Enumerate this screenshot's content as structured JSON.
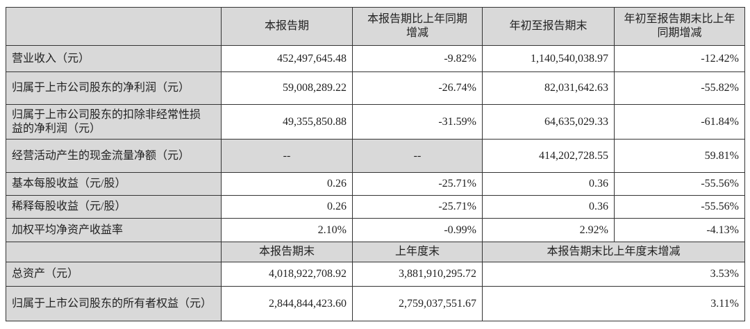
{
  "header": [
    "",
    "本报告期",
    "本报告期比上年同期增减",
    "年初至报告期末",
    "年初至报告期末比上年同期增减"
  ],
  "rows": [
    {
      "label": "营业收入（元）",
      "c1": "452,497,645.48",
      "c2": "-9.82%",
      "c3": "1,140,540,038.97",
      "c4": "-12.42%"
    },
    {
      "label": "归属于上市公司股东的净利润（元）",
      "c1": "59,008,289.22",
      "c2": "-26.74%",
      "c3": "82,031,642.63",
      "c4": "-55.82%"
    },
    {
      "label": "归属于上市公司股东的扣除非经常性损益的净利润（元）",
      "c1": "49,355,850.88",
      "c2": "-31.59%",
      "c3": "64,635,029.33",
      "c4": "-61.84%"
    },
    {
      "label": "经营活动产生的现金流量净额（元）",
      "c1": "--",
      "c2": "--",
      "c3": "414,202,728.55",
      "c4": "59.81%"
    },
    {
      "label": "基本每股收益（元/股）",
      "c1": "0.26",
      "c2": "-25.71%",
      "c3": "0.36",
      "c4": "-55.56%"
    },
    {
      "label": "稀释每股收益（元/股）",
      "c1": "0.26",
      "c2": "-25.71%",
      "c3": "0.36",
      "c4": "-55.56%"
    },
    {
      "label": "加权平均净资产收益率",
      "c1": "2.10%",
      "c2": "-0.99%",
      "c3": "2.92%",
      "c4": "-4.13%"
    }
  ],
  "subheader": [
    "",
    "本报告期末",
    "上年度末",
    "本报告期末比上年度末增减"
  ],
  "rows2": [
    {
      "label": "总资产（元）",
      "c1": "4,018,922,708.92",
      "c2": "3,881,910,295.72",
      "c3": "3.53%"
    },
    {
      "label": "归属于上市公司股东的所有者权益（元）",
      "c1": "2,844,844,423.60",
      "c2": "2,759,037,551.67",
      "c3": "3.11%"
    }
  ]
}
